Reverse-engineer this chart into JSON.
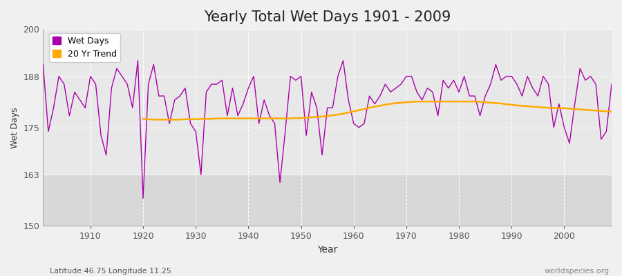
{
  "title": "Yearly Total Wet Days 1901 - 2009",
  "xlabel": "Year",
  "ylabel": "Wet Days",
  "xlim": [
    1901,
    2009
  ],
  "ylim": [
    150,
    200
  ],
  "yticks": [
    150,
    163,
    175,
    188,
    200
  ],
  "xticks": [
    1910,
    1920,
    1930,
    1940,
    1950,
    1960,
    1970,
    1980,
    1990,
    2000
  ],
  "wet_days_color": "#aa00aa",
  "trend_color": "#ffaa00",
  "background_color": "#f0f0f0",
  "plot_bg_upper": "#e8e8e8",
  "plot_bg_lower": "#d8d8d8",
  "grid_color": "#cccccc",
  "footer_left": "Latitude 46.75 Longitude 11.25",
  "footer_right": "worldspecies.org",
  "legend_wet": "Wet Days",
  "legend_trend": "20 Yr Trend",
  "lower_band_threshold": 163,
  "years": [
    1901,
    1902,
    1903,
    1904,
    1905,
    1906,
    1907,
    1908,
    1909,
    1910,
    1911,
    1912,
    1913,
    1914,
    1915,
    1916,
    1917,
    1918,
    1919,
    1920,
    1921,
    1922,
    1923,
    1924,
    1925,
    1926,
    1927,
    1928,
    1929,
    1930,
    1931,
    1932,
    1933,
    1934,
    1935,
    1936,
    1937,
    1938,
    1939,
    1940,
    1941,
    1942,
    1943,
    1944,
    1945,
    1946,
    1947,
    1948,
    1949,
    1950,
    1951,
    1952,
    1953,
    1954,
    1955,
    1956,
    1957,
    1958,
    1959,
    1960,
    1961,
    1962,
    1963,
    1964,
    1965,
    1966,
    1967,
    1968,
    1969,
    1970,
    1971,
    1972,
    1973,
    1974,
    1975,
    1976,
    1977,
    1978,
    1979,
    1980,
    1981,
    1982,
    1983,
    1984,
    1985,
    1986,
    1987,
    1988,
    1989,
    1990,
    1991,
    1992,
    1993,
    1994,
    1995,
    1996,
    1997,
    1998,
    1999,
    2000,
    2001,
    2002,
    2003,
    2004,
    2005,
    2006,
    2007,
    2008,
    2009
  ],
  "wet_days": [
    191,
    174,
    180,
    188,
    186,
    178,
    184,
    182,
    180,
    188,
    186,
    173,
    168,
    185,
    190,
    188,
    186,
    180,
    192,
    157,
    186,
    191,
    183,
    183,
    176,
    182,
    183,
    185,
    176,
    174,
    163,
    184,
    186,
    186,
    187,
    178,
    185,
    178,
    181,
    185,
    188,
    176,
    182,
    178,
    176,
    161,
    174,
    188,
    187,
    188,
    173,
    184,
    180,
    168,
    180,
    180,
    188,
    192,
    182,
    176,
    175,
    176,
    183,
    181,
    183,
    186,
    184,
    185,
    186,
    188,
    188,
    184,
    182,
    185,
    184,
    178,
    187,
    185,
    187,
    184,
    188,
    183,
    183,
    178,
    183,
    186,
    191,
    187,
    188,
    188,
    186,
    183,
    188,
    185,
    183,
    188,
    186,
    175,
    181,
    175,
    171,
    181,
    190,
    187,
    188,
    186,
    172,
    174,
    186
  ],
  "trend": [
    null,
    null,
    null,
    null,
    null,
    null,
    null,
    null,
    null,
    null,
    null,
    null,
    null,
    null,
    null,
    null,
    null,
    null,
    null,
    177.2,
    177.1,
    177.0,
    177.0,
    177.0,
    177.0,
    177.0,
    177.0,
    177.1,
    177.1,
    177.1,
    177.2,
    177.2,
    177.2,
    177.3,
    177.3,
    177.3,
    177.3,
    177.3,
    177.3,
    177.3,
    177.3,
    177.3,
    177.3,
    177.3,
    177.3,
    177.3,
    177.3,
    177.3,
    177.4,
    177.4,
    177.5,
    177.6,
    177.7,
    177.8,
    177.9,
    178.1,
    178.3,
    178.5,
    178.8,
    179.1,
    179.4,
    179.7,
    180.0,
    180.3,
    180.5,
    180.8,
    181.0,
    181.2,
    181.3,
    181.4,
    181.5,
    181.6,
    181.6,
    181.6,
    181.6,
    181.6,
    181.6,
    181.6,
    181.6,
    181.6,
    181.6,
    181.6,
    181.6,
    181.5,
    181.4,
    181.3,
    181.2,
    181.1,
    180.9,
    180.8,
    180.6,
    180.5,
    180.4,
    180.3,
    180.2,
    180.1,
    180.0,
    180.0,
    179.9,
    179.9,
    179.8,
    179.7,
    179.6,
    179.5,
    179.4,
    179.3,
    179.2,
    179.1,
    179.0
  ]
}
